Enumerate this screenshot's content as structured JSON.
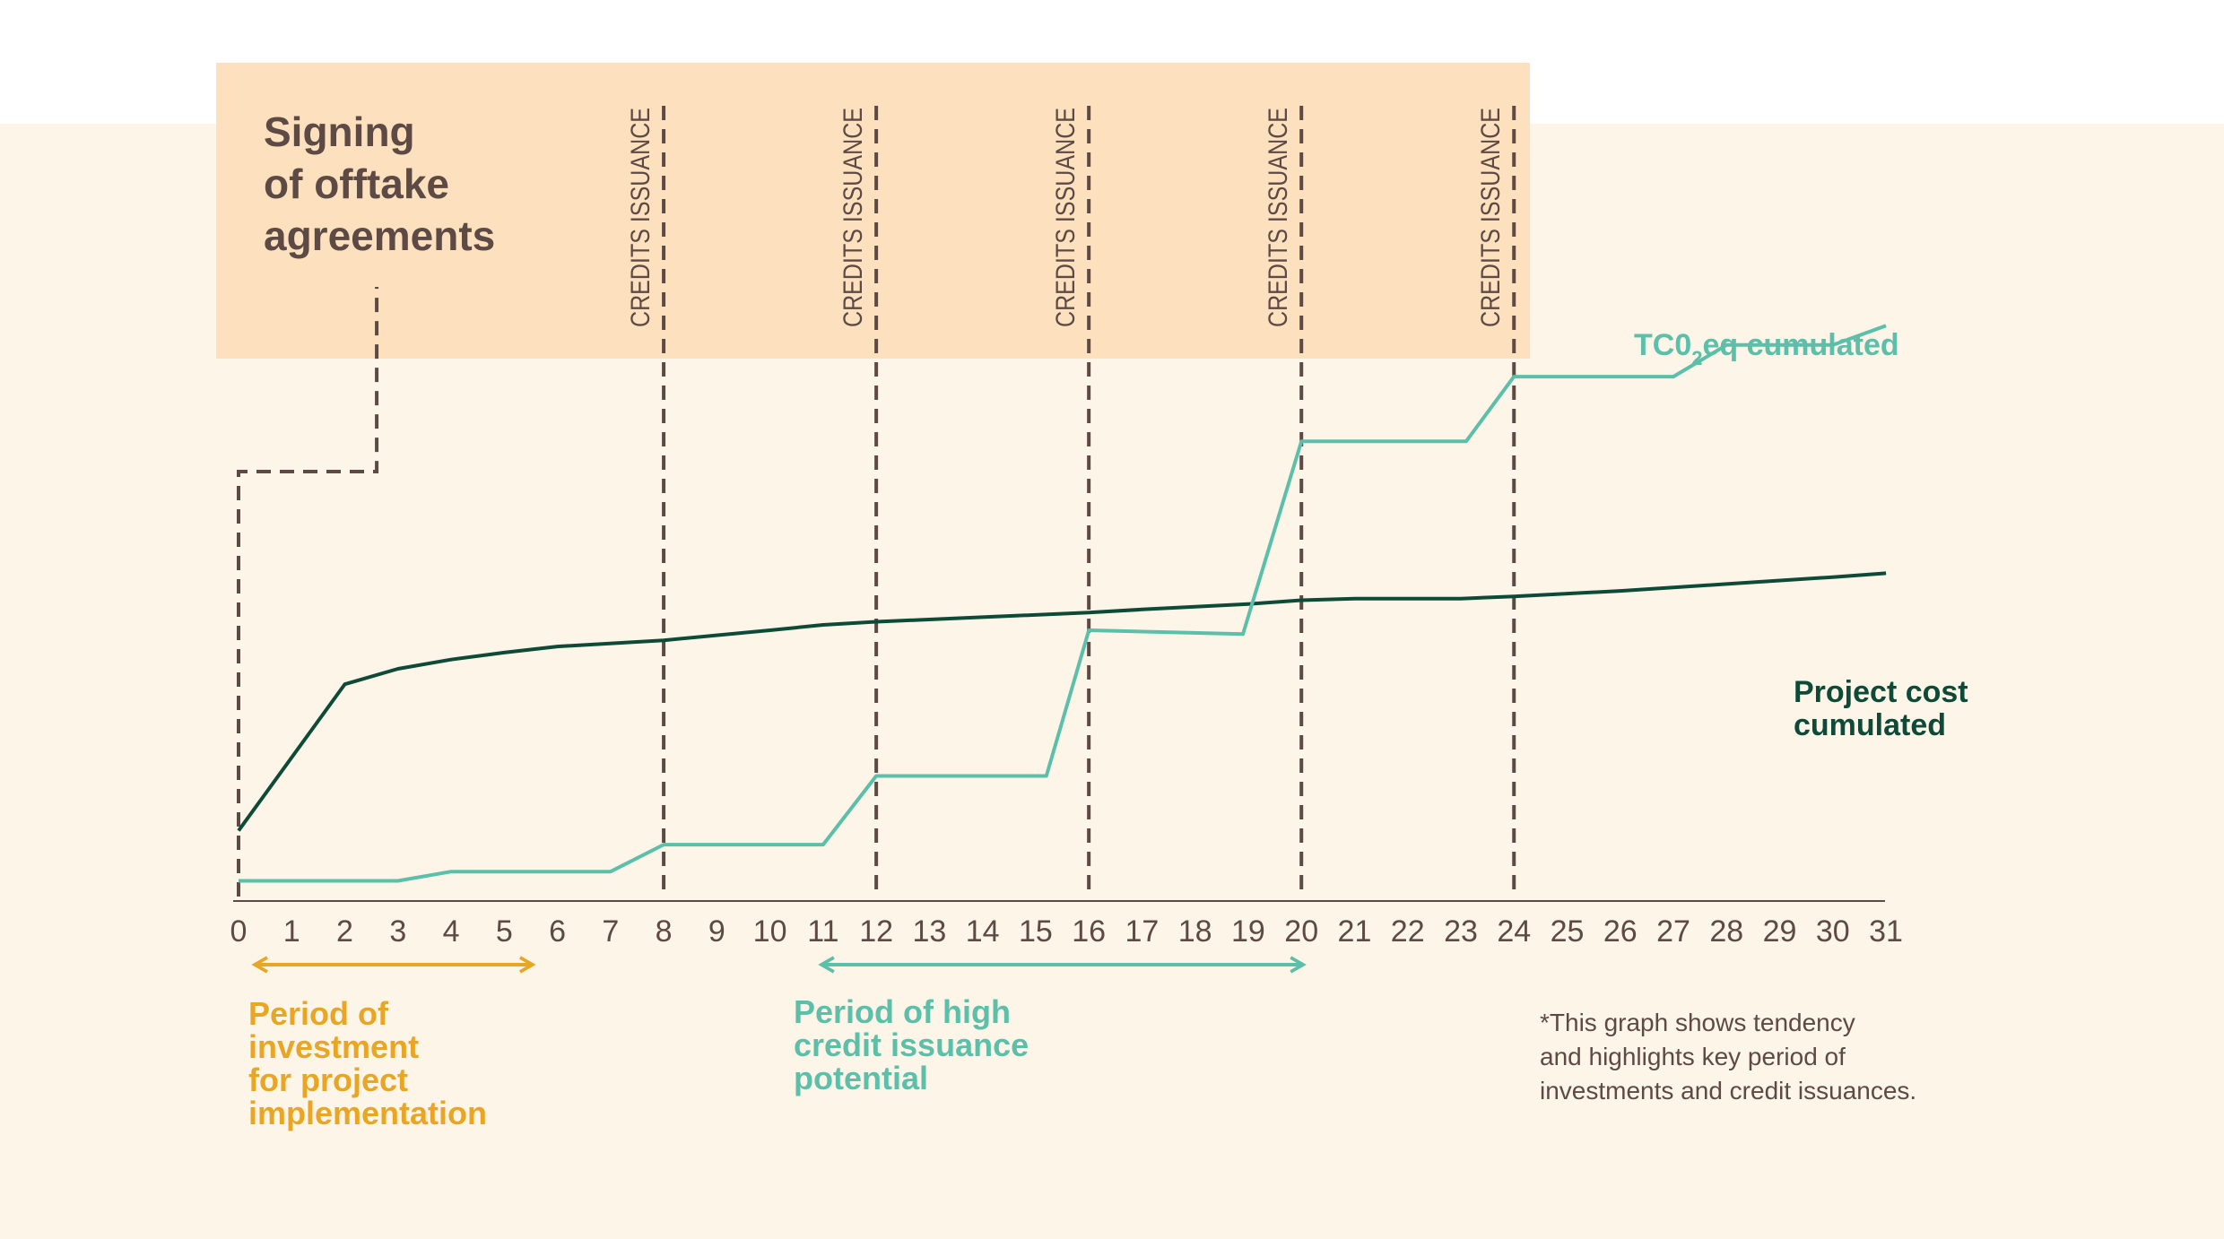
{
  "colors": {
    "page_top": "#ffffff",
    "page_bg": "#fdf5e8",
    "band": "#fde1bf",
    "dashed": "#5e4a45",
    "tco2": "#5bbfa9",
    "cost": "#0e4a38",
    "investment": "#e9a524",
    "axis": "#5e4a45",
    "tick_text": "#5e4a45",
    "note_text": "#5e4a45"
  },
  "header": {
    "signing_lines": [
      "Signing",
      "of offtake",
      "agreements"
    ]
  },
  "annotations": {
    "credits_label": "CREDITS ISSUANCE",
    "investment_lines": [
      "Period of",
      "investment",
      "for project",
      "implementation"
    ],
    "high_credit_lines": [
      "Period of high",
      "credit issuance",
      "potential"
    ],
    "note_lines": [
      "*This graph shows tendency",
      "and highlights key period of",
      "investments and credit issuances."
    ]
  },
  "chart_data": {
    "type": "line",
    "x_ticks": [
      0,
      1,
      2,
      3,
      4,
      5,
      6,
      7,
      8,
      9,
      10,
      11,
      12,
      13,
      14,
      15,
      16,
      17,
      18,
      19,
      20,
      21,
      22,
      23,
      24,
      25,
      26,
      27,
      28,
      29,
      30,
      31
    ],
    "xlim": [
      0,
      31
    ],
    "grid": false,
    "credit_issuance_x": [
      8,
      12,
      16,
      20,
      24
    ],
    "signing_offtake_x": [
      0,
      2.6
    ],
    "investment_period": [
      0,
      5.5
    ],
    "high_credit_period": [
      11,
      20
    ],
    "series": [
      {
        "name": "Project cost cumulated",
        "label_lines": [
          "Project cost",
          "cumulated"
        ],
        "points": [
          [
            0,
            0.09
          ],
          [
            2,
            0.28
          ],
          [
            3,
            0.3
          ],
          [
            4,
            0.312
          ],
          [
            5,
            0.321
          ],
          [
            6,
            0.329
          ],
          [
            8,
            0.337
          ],
          [
            10,
            0.35
          ],
          [
            11,
            0.357
          ],
          [
            12,
            0.361
          ],
          [
            14,
            0.367
          ],
          [
            16,
            0.373
          ],
          [
            17,
            0.377
          ],
          [
            19,
            0.384
          ],
          [
            20,
            0.389
          ],
          [
            21,
            0.391
          ],
          [
            23,
            0.391
          ],
          [
            24,
            0.394
          ],
          [
            26,
            0.401
          ],
          [
            28,
            0.41
          ],
          [
            30,
            0.419
          ],
          [
            31,
            0.424
          ]
        ]
      },
      {
        "name": "TC0₂eq cumulated",
        "label_main": "TC0",
        "label_sub": "2",
        "label_rest": "eq cumulated",
        "points": [
          [
            0,
            0.025
          ],
          [
            3,
            0.025
          ],
          [
            4,
            0.037
          ],
          [
            7,
            0.037
          ],
          [
            8,
            0.072
          ],
          [
            11,
            0.072
          ],
          [
            12,
            0.161
          ],
          [
            15.2,
            0.161
          ],
          [
            16,
            0.35
          ],
          [
            18.9,
            0.345
          ],
          [
            20,
            0.595
          ],
          [
            23.1,
            0.595
          ],
          [
            24,
            0.679
          ],
          [
            27,
            0.679
          ],
          [
            28,
            0.72
          ],
          [
            30,
            0.72
          ],
          [
            31,
            0.745
          ]
        ]
      }
    ]
  }
}
